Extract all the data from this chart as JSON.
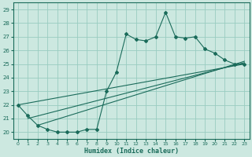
{
  "xlabel": "Humidex (Indice chaleur)",
  "bg_color": "#cce8e0",
  "grid_color": "#99ccc0",
  "line_color": "#1a6b5a",
  "xlim": [
    -0.5,
    23.5
  ],
  "ylim": [
    19.5,
    29.5
  ],
  "yticks": [
    20,
    21,
    22,
    23,
    24,
    25,
    26,
    27,
    28,
    29
  ],
  "xticks": [
    0,
    1,
    2,
    3,
    4,
    5,
    6,
    7,
    8,
    9,
    10,
    11,
    12,
    13,
    14,
    15,
    16,
    17,
    18,
    19,
    20,
    21,
    22,
    23
  ],
  "main_line": {
    "x": [
      0,
      1,
      2,
      3,
      4,
      5,
      6,
      7,
      8,
      9,
      10,
      11,
      12,
      13,
      14,
      15,
      16,
      17,
      18,
      19,
      20,
      21,
      22,
      23
    ],
    "y": [
      22.0,
      21.2,
      20.5,
      20.2,
      20.0,
      20.0,
      20.0,
      20.2,
      20.2,
      23.0,
      24.4,
      27.2,
      26.8,
      26.7,
      27.0,
      28.8,
      27.0,
      26.9,
      27.0,
      26.1,
      25.8,
      25.3,
      25.0,
      25.0
    ]
  },
  "regression_lines": [
    {
      "x": [
        0,
        23
      ],
      "y": [
        22.0,
        25.0
      ]
    },
    {
      "x": [
        1,
        23
      ],
      "y": [
        21.0,
        25.1
      ]
    },
    {
      "x": [
        2,
        23
      ],
      "y": [
        20.5,
        25.2
      ]
    }
  ]
}
